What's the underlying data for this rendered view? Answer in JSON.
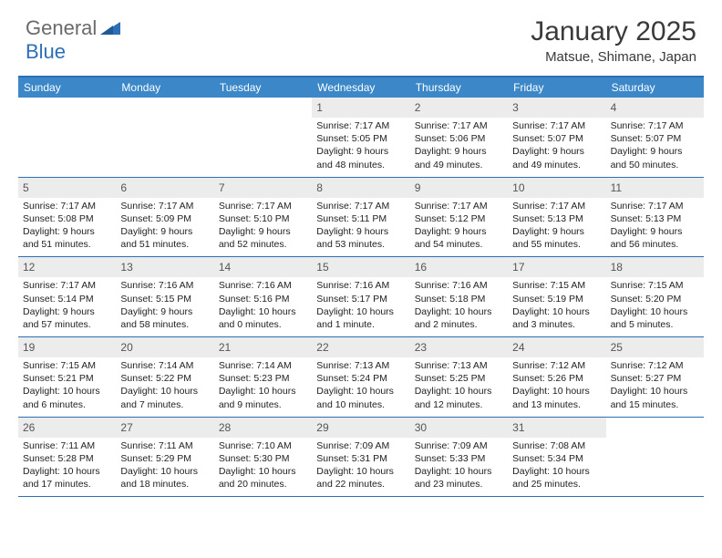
{
  "logo": {
    "part1": "General",
    "part2": "Blue"
  },
  "title": "January 2025",
  "location": "Matsue, Shimane, Japan",
  "colors": {
    "header_bar": "#3b87c8",
    "accent_line": "#2d6fb5",
    "daynum_bg": "#ececec",
    "text": "#222222",
    "title_text": "#3a3a3a",
    "logo_gray": "#6a6a6a",
    "logo_blue": "#2d6fb5",
    "white": "#ffffff"
  },
  "days_of_week": [
    "Sunday",
    "Monday",
    "Tuesday",
    "Wednesday",
    "Thursday",
    "Friday",
    "Saturday"
  ],
  "weeks": [
    [
      {
        "n": "",
        "sunrise": "",
        "sunset": "",
        "daylight": ""
      },
      {
        "n": "",
        "sunrise": "",
        "sunset": "",
        "daylight": ""
      },
      {
        "n": "",
        "sunrise": "",
        "sunset": "",
        "daylight": ""
      },
      {
        "n": "1",
        "sunrise": "Sunrise: 7:17 AM",
        "sunset": "Sunset: 5:05 PM",
        "daylight": "Daylight: 9 hours and 48 minutes."
      },
      {
        "n": "2",
        "sunrise": "Sunrise: 7:17 AM",
        "sunset": "Sunset: 5:06 PM",
        "daylight": "Daylight: 9 hours and 49 minutes."
      },
      {
        "n": "3",
        "sunrise": "Sunrise: 7:17 AM",
        "sunset": "Sunset: 5:07 PM",
        "daylight": "Daylight: 9 hours and 49 minutes."
      },
      {
        "n": "4",
        "sunrise": "Sunrise: 7:17 AM",
        "sunset": "Sunset: 5:07 PM",
        "daylight": "Daylight: 9 hours and 50 minutes."
      }
    ],
    [
      {
        "n": "5",
        "sunrise": "Sunrise: 7:17 AM",
        "sunset": "Sunset: 5:08 PM",
        "daylight": "Daylight: 9 hours and 51 minutes."
      },
      {
        "n": "6",
        "sunrise": "Sunrise: 7:17 AM",
        "sunset": "Sunset: 5:09 PM",
        "daylight": "Daylight: 9 hours and 51 minutes."
      },
      {
        "n": "7",
        "sunrise": "Sunrise: 7:17 AM",
        "sunset": "Sunset: 5:10 PM",
        "daylight": "Daylight: 9 hours and 52 minutes."
      },
      {
        "n": "8",
        "sunrise": "Sunrise: 7:17 AM",
        "sunset": "Sunset: 5:11 PM",
        "daylight": "Daylight: 9 hours and 53 minutes."
      },
      {
        "n": "9",
        "sunrise": "Sunrise: 7:17 AM",
        "sunset": "Sunset: 5:12 PM",
        "daylight": "Daylight: 9 hours and 54 minutes."
      },
      {
        "n": "10",
        "sunrise": "Sunrise: 7:17 AM",
        "sunset": "Sunset: 5:13 PM",
        "daylight": "Daylight: 9 hours and 55 minutes."
      },
      {
        "n": "11",
        "sunrise": "Sunrise: 7:17 AM",
        "sunset": "Sunset: 5:13 PM",
        "daylight": "Daylight: 9 hours and 56 minutes."
      }
    ],
    [
      {
        "n": "12",
        "sunrise": "Sunrise: 7:17 AM",
        "sunset": "Sunset: 5:14 PM",
        "daylight": "Daylight: 9 hours and 57 minutes."
      },
      {
        "n": "13",
        "sunrise": "Sunrise: 7:16 AM",
        "sunset": "Sunset: 5:15 PM",
        "daylight": "Daylight: 9 hours and 58 minutes."
      },
      {
        "n": "14",
        "sunrise": "Sunrise: 7:16 AM",
        "sunset": "Sunset: 5:16 PM",
        "daylight": "Daylight: 10 hours and 0 minutes."
      },
      {
        "n": "15",
        "sunrise": "Sunrise: 7:16 AM",
        "sunset": "Sunset: 5:17 PM",
        "daylight": "Daylight: 10 hours and 1 minute."
      },
      {
        "n": "16",
        "sunrise": "Sunrise: 7:16 AM",
        "sunset": "Sunset: 5:18 PM",
        "daylight": "Daylight: 10 hours and 2 minutes."
      },
      {
        "n": "17",
        "sunrise": "Sunrise: 7:15 AM",
        "sunset": "Sunset: 5:19 PM",
        "daylight": "Daylight: 10 hours and 3 minutes."
      },
      {
        "n": "18",
        "sunrise": "Sunrise: 7:15 AM",
        "sunset": "Sunset: 5:20 PM",
        "daylight": "Daylight: 10 hours and 5 minutes."
      }
    ],
    [
      {
        "n": "19",
        "sunrise": "Sunrise: 7:15 AM",
        "sunset": "Sunset: 5:21 PM",
        "daylight": "Daylight: 10 hours and 6 minutes."
      },
      {
        "n": "20",
        "sunrise": "Sunrise: 7:14 AM",
        "sunset": "Sunset: 5:22 PM",
        "daylight": "Daylight: 10 hours and 7 minutes."
      },
      {
        "n": "21",
        "sunrise": "Sunrise: 7:14 AM",
        "sunset": "Sunset: 5:23 PM",
        "daylight": "Daylight: 10 hours and 9 minutes."
      },
      {
        "n": "22",
        "sunrise": "Sunrise: 7:13 AM",
        "sunset": "Sunset: 5:24 PM",
        "daylight": "Daylight: 10 hours and 10 minutes."
      },
      {
        "n": "23",
        "sunrise": "Sunrise: 7:13 AM",
        "sunset": "Sunset: 5:25 PM",
        "daylight": "Daylight: 10 hours and 12 minutes."
      },
      {
        "n": "24",
        "sunrise": "Sunrise: 7:12 AM",
        "sunset": "Sunset: 5:26 PM",
        "daylight": "Daylight: 10 hours and 13 minutes."
      },
      {
        "n": "25",
        "sunrise": "Sunrise: 7:12 AM",
        "sunset": "Sunset: 5:27 PM",
        "daylight": "Daylight: 10 hours and 15 minutes."
      }
    ],
    [
      {
        "n": "26",
        "sunrise": "Sunrise: 7:11 AM",
        "sunset": "Sunset: 5:28 PM",
        "daylight": "Daylight: 10 hours and 17 minutes."
      },
      {
        "n": "27",
        "sunrise": "Sunrise: 7:11 AM",
        "sunset": "Sunset: 5:29 PM",
        "daylight": "Daylight: 10 hours and 18 minutes."
      },
      {
        "n": "28",
        "sunrise": "Sunrise: 7:10 AM",
        "sunset": "Sunset: 5:30 PM",
        "daylight": "Daylight: 10 hours and 20 minutes."
      },
      {
        "n": "29",
        "sunrise": "Sunrise: 7:09 AM",
        "sunset": "Sunset: 5:31 PM",
        "daylight": "Daylight: 10 hours and 22 minutes."
      },
      {
        "n": "30",
        "sunrise": "Sunrise: 7:09 AM",
        "sunset": "Sunset: 5:33 PM",
        "daylight": "Daylight: 10 hours and 23 minutes."
      },
      {
        "n": "31",
        "sunrise": "Sunrise: 7:08 AM",
        "sunset": "Sunset: 5:34 PM",
        "daylight": "Daylight: 10 hours and 25 minutes."
      },
      {
        "n": "",
        "sunrise": "",
        "sunset": "",
        "daylight": ""
      }
    ]
  ]
}
